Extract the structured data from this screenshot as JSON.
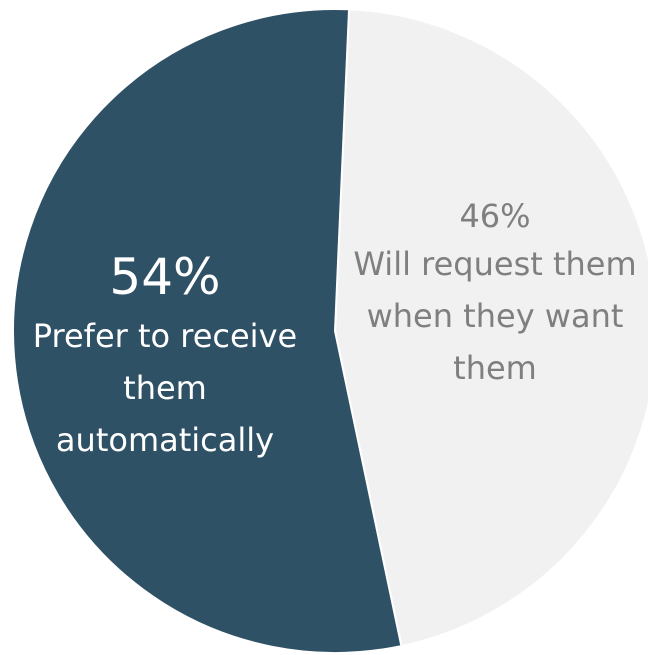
{
  "chart_data": {
    "type": "pie",
    "title": "",
    "slices": [
      {
        "value_label": "54%",
        "value": 54,
        "label": "Prefer to receive them automatically",
        "label_lines": "Prefer to receive\nthem\nautomatically",
        "color": "#2f5166",
        "text_color": "#ffffff"
      },
      {
        "value_label": "46%",
        "value": 46,
        "label": "Will request them when they want them",
        "label_lines": "Will request them\nwhen they want\nthem",
        "color": "#f1f1f1",
        "text_color": "#7f7f7f"
      }
    ],
    "legend": "none"
  }
}
